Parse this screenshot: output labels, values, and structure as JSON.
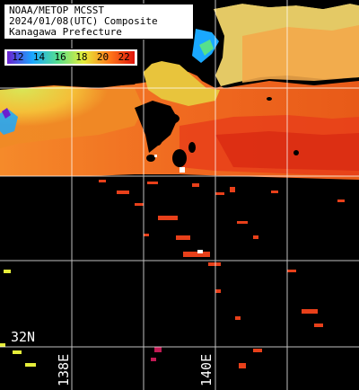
{
  "map": {
    "title_lines": [
      "NOAA/METOP MCSST",
      "2024/01/08(UTC) Composite",
      "Kanagawa Prefecture"
    ],
    "color_scale": {
      "ticks": [
        "12",
        "14",
        "16",
        "18",
        "20",
        "22"
      ],
      "colors": [
        "#6b1fd0",
        "#1aa8ff",
        "#56e08c",
        "#e6ee3a",
        "#ff7a1a",
        "#e0140c"
      ]
    },
    "grid_labels": {
      "latitude": "32N",
      "longitude_138": "138E",
      "longitude_140": "140E"
    },
    "land_color": "#000000",
    "grid_color": "#ffffff"
  }
}
